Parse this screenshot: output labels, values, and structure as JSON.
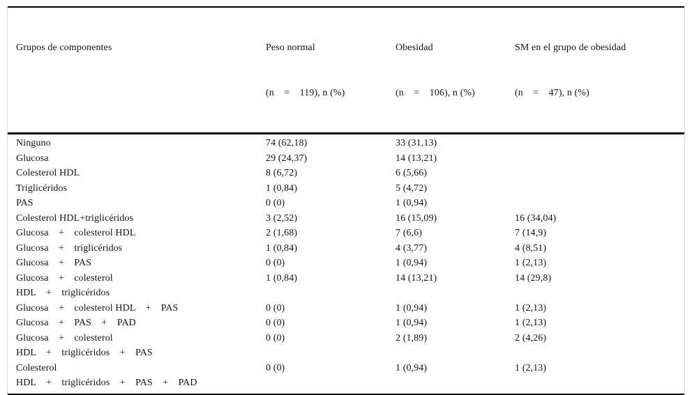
{
  "table": {
    "columns": [
      {
        "line1": "Grupos de componentes",
        "line2": ""
      },
      {
        "line1": "Peso normal",
        "line2": "(n    =    119), n (%)"
      },
      {
        "line1": "Obesidad",
        "line2": "(n    =    106), n (%)"
      },
      {
        "line1": "SM en el grupo de obesidad",
        "line2": "(n    =    47), n (%)"
      }
    ],
    "rows": [
      {
        "label": "Ninguno",
        "peso_normal": "74 (62,18)",
        "obesidad": "33 (31,13)",
        "sm_obesidad": ""
      },
      {
        "label": "Glucosa",
        "peso_normal": "29 (24,37)",
        "obesidad": "14 (13,21)",
        "sm_obesidad": ""
      },
      {
        "label": "Colesterol HDL",
        "peso_normal": "8 (6,72)",
        "obesidad": "6 (5,66)",
        "sm_obesidad": ""
      },
      {
        "label": "Triglicéridos",
        "peso_normal": "1 (0,84)",
        "obesidad": "5 (4,72)",
        "sm_obesidad": ""
      },
      {
        "label": "PAS",
        "peso_normal": "0 (0)",
        "obesidad": "1 (0,94)",
        "sm_obesidad": ""
      },
      {
        "label": "Colesterol HDL+triglicéridos",
        "peso_normal": "3 (2,52)",
        "obesidad": "16 (15,09)",
        "sm_obesidad": "16 (34,04)"
      },
      {
        "label": "Glucosa    +    colesterol HDL",
        "peso_normal": "2 (1,68)",
        "obesidad": "7 (6,6)",
        "sm_obesidad": "7 (14,9)"
      },
      {
        "label": "Glucosa    +    triglicéridos",
        "peso_normal": "1 (0,84)",
        "obesidad": "4 (3,77)",
        "sm_obesidad": "4 (8,51)"
      },
      {
        "label": "Glucosa    +    PAS",
        "peso_normal": "0 (0)",
        "obesidad": "1 (0,94)",
        "sm_obesidad": "1 (2,13)"
      },
      {
        "label": "Glucosa    +    colesterol\nHDL    +    triglicéridos",
        "peso_normal": "1 (0,84)",
        "obesidad": "14 (13,21)",
        "sm_obesidad": "14 (29,8)"
      },
      {
        "label": "Glucosa    +    colesterol HDL    +    PAS",
        "peso_normal": "0 (0)",
        "obesidad": "1 (0,94)",
        "sm_obesidad": "1 (2,13)"
      },
      {
        "label": "Glucosa    +    PAS    +    PAD",
        "peso_normal": "0 (0)",
        "obesidad": "1 (0,94)",
        "sm_obesidad": "1 (2,13)"
      },
      {
        "label": "Glucosa    +    colesterol\nHDL    +    triglicéridos    +    PAS",
        "peso_normal": "0 (0)",
        "obesidad": "2 (1,89)",
        "sm_obesidad": "2 (4,26)"
      },
      {
        "label": "Colesterol\nHDL    +    triglicéridos    +    PAS    +    PAD",
        "peso_normal": "0 (0)",
        "obesidad": "1 (0,94)",
        "sm_obesidad": "1 (2,13)"
      }
    ]
  }
}
